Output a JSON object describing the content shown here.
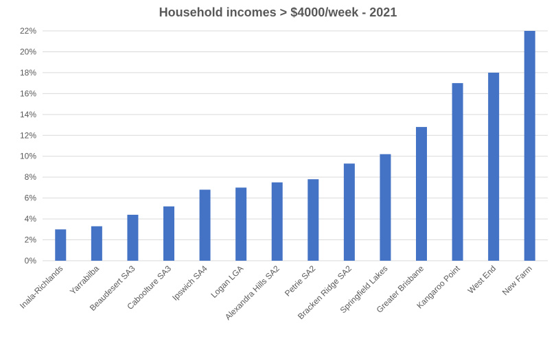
{
  "chart_data": {
    "type": "bar",
    "title": "Household incomes > $4000/week - 2021",
    "xlabel": "",
    "ylabel": "",
    "categories": [
      "Inala-Richlands",
      "Yarrabilba",
      "Beaudesert SA3",
      "Caboolture SA3",
      "Ipswich SA4",
      "Logan LGA",
      "Alexandra Hills SA2",
      "Petrie SA2",
      "Bracken Ridge SA2",
      "Springfield Lakes",
      "Greater Brisbane",
      "Kangaroo Point",
      "West End",
      "New Farm"
    ],
    "values": [
      3.0,
      3.3,
      4.4,
      5.2,
      6.8,
      7.0,
      7.5,
      7.8,
      9.3,
      10.2,
      12.8,
      17.0,
      18.0,
      22.0
    ],
    "ylim": [
      0,
      22
    ],
    "yticks": [
      "0%",
      "2%",
      "4%",
      "6%",
      "8%",
      "10%",
      "12%",
      "14%",
      "16%",
      "18%",
      "20%",
      "22%"
    ],
    "grid": true,
    "legend": "none",
    "bar_color": "#4472C4",
    "grid_color": "#D9D9D9"
  }
}
